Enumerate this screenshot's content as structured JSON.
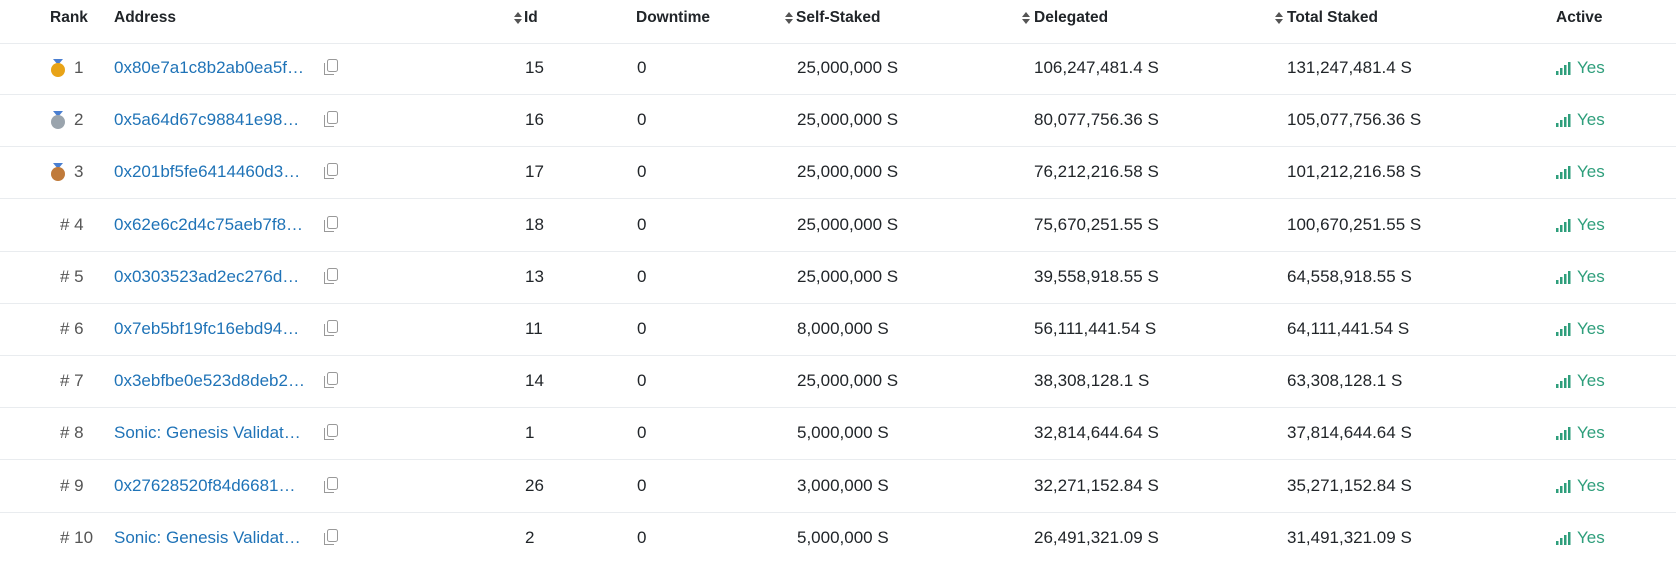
{
  "table": {
    "headers": [
      "Rank",
      "Address",
      "Id",
      "Downtime",
      "Self-Staked",
      "Delegated",
      "Total Staked",
      "Active"
    ],
    "rows": [
      [
        "1",
        "0x80e7a1c8b2ab0ea5f…",
        "15",
        "0",
        "25,000,000 S",
        "106,247,481.4 S",
        "131,247,481.4 S",
        "Yes"
      ],
      [
        "2",
        "0x5a64d67c98841e98…",
        "16",
        "0",
        "25,000,000 S",
        "80,077,756.36 S",
        "105,077,756.36 S",
        "Yes"
      ],
      [
        "3",
        "0x201bf5fe6414460d3…",
        "17",
        "0",
        "25,000,000 S",
        "76,212,216.58 S",
        "101,212,216.58 S",
        "Yes"
      ],
      [
        "# 4",
        "0x62e6c2d4c75aeb7f8…",
        "18",
        "0",
        "25,000,000 S",
        "75,670,251.55 S",
        "100,670,251.55 S",
        "Yes"
      ],
      [
        "# 5",
        "0x0303523ad2ec276d…",
        "13",
        "0",
        "25,000,000 S",
        "39,558,918.55 S",
        "64,558,918.55 S",
        "Yes"
      ],
      [
        "# 6",
        "0x7eb5bf19fc16ebd94…",
        "11",
        "0",
        "8,000,000 S",
        "56,111,441.54 S",
        "64,111,441.54 S",
        "Yes"
      ],
      [
        "# 7",
        "0x3ebfbe0e523d8deb2…",
        "14",
        "0",
        "25,000,000 S",
        "38,308,128.1 S",
        "63,308,128.1 S",
        "Yes"
      ],
      [
        "# 8",
        "Sonic: Genesis Validat…",
        "1",
        "0",
        "5,000,000 S",
        "32,814,644.64 S",
        "37,814,644.64 S",
        "Yes"
      ],
      [
        "# 9",
        "0x27628520f84d6681…",
        "26",
        "0",
        "3,000,000 S",
        "32,271,152.84 S",
        "35,271,152.84 S",
        "Yes"
      ],
      [
        "# 10",
        "Sonic: Genesis Validat…",
        "2",
        "0",
        "5,000,000 S",
        "26,491,321.09 S",
        "31,491,321.09 S",
        "Yes"
      ]
    ]
  }
}
